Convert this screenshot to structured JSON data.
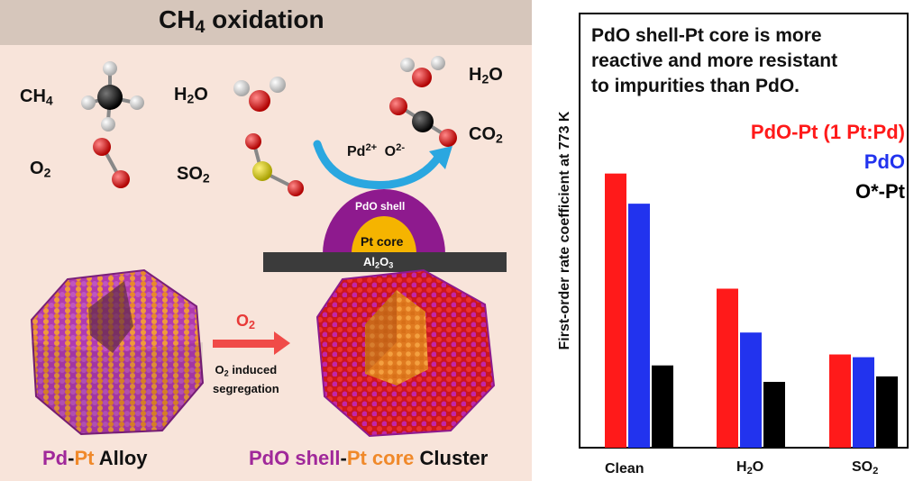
{
  "left_panel": {
    "title_main": "CH",
    "title_sub": "4",
    "title_rest": " oxidation",
    "colors": {
      "header": "#d6c6bb",
      "panel": "#f8e4da",
      "arrow_blue": "#2aa7e0",
      "arrow_red": "#f04b48",
      "shell": "#8e1a8e",
      "core": "#f5b400",
      "support": "#3b3b3b"
    },
    "molecules": {
      "ch4": {
        "main": "CH",
        "sub": "4"
      },
      "h2o_left": {
        "main": "H",
        "sub": "2",
        "rest": "O"
      },
      "o2": {
        "main": "O",
        "sub": "2"
      },
      "so2": {
        "main": "SO",
        "sub": "2"
      },
      "h2o_right": {
        "main": "H",
        "sub": "2",
        "rest": "O"
      },
      "co2": {
        "main": "CO",
        "sub": "2"
      }
    },
    "arrow_label": {
      "pd": "Pd",
      "pd_sup": "2+",
      "o": "O",
      "o_sup": "2-"
    },
    "shell_label": "PdO shell",
    "core_label": "Pt core",
    "support_label": {
      "main": "Al",
      "sub1": "2",
      "mid": "O",
      "sub2": "3"
    },
    "reaction_arrow": {
      "o2_main": "O",
      "o2_sub": "2",
      "note_main": "O",
      "note_sub": "2",
      "note_rest": " induced",
      "note_line2": "segregation"
    },
    "caption_left": {
      "pd": "Pd",
      "dash": "-",
      "pt": "Pt",
      "rest": " Alloy"
    },
    "caption_right": {
      "pdo": "PdO shell",
      "dash": "-",
      "pt": "Pt core",
      "rest": " Cluster"
    }
  },
  "right_panel": {
    "statement_lines": [
      "PdO shell-Pt core is more",
      "reactive and more resistant",
      "to impurities than PdO."
    ],
    "legend": [
      {
        "label": "PdO-Pt (1 Pt:Pd)",
        "color": "#ff1a1a"
      },
      {
        "label": "PdO",
        "color": "#2233ee"
      },
      {
        "label": "O*-Pt",
        "color": "#000000"
      }
    ]
  },
  "chart_data": {
    "type": "bar",
    "ylabel": "First-order rate coefficient at 773 K",
    "categories": [
      "Clean",
      "H2O",
      "SO2"
    ],
    "series": [
      {
        "name": "PdO-Pt (1 Pt:Pd)",
        "color": "#ff1a1a",
        "values": [
          100,
          58,
          34
        ]
      },
      {
        "name": "PdO",
        "color": "#2233ee",
        "values": [
          89,
          42,
          33
        ]
      },
      {
        "name": "O*-Pt",
        "color": "#000000",
        "values": [
          30,
          24,
          26
        ]
      }
    ],
    "ylim": [
      0,
      115
    ],
    "grid": false
  }
}
